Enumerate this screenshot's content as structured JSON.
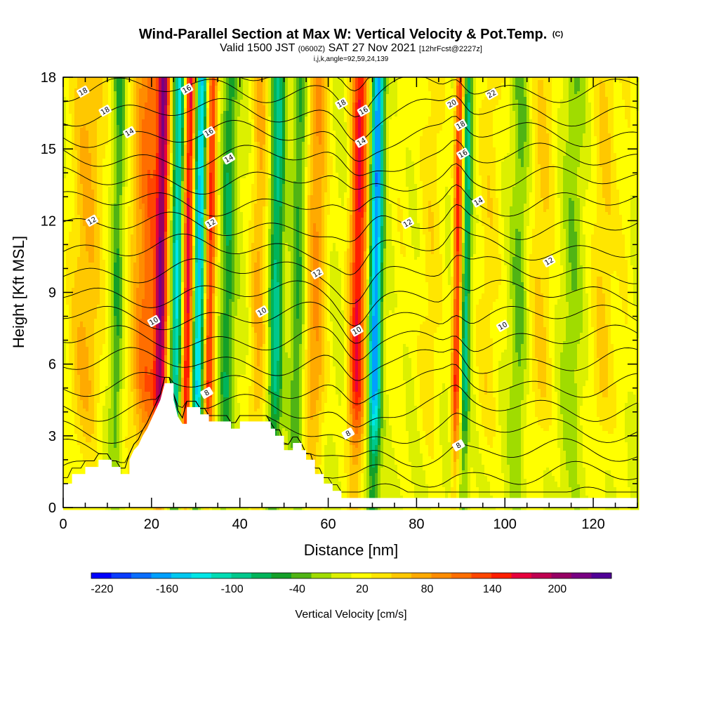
{
  "title": {
    "main": "Wind-Parallel Section at Max W: Vertical Velocity & Pot.Temp.",
    "main_suffix": "(C)",
    "valid_prefix": "Valid 1500 JST",
    "valid_utc": "(0600Z)",
    "valid_date": "SAT 27 Nov 2021",
    "valid_fcst": "[12hrFcst@2227z]",
    "params": "i,j,k,angle=92,59,24,139"
  },
  "chart_data": {
    "type": "heatmap",
    "xlabel": "Distance [nm]",
    "ylabel": "Height [Kft MSL]",
    "xlim": [
      0,
      130
    ],
    "ylim": [
      0,
      18
    ],
    "xticks": [
      0,
      20,
      40,
      60,
      80,
      100,
      120
    ],
    "yticks": [
      0,
      3,
      6,
      9,
      12,
      15,
      18
    ],
    "colorbar": {
      "label": "Vertical Velocity [cm/s]",
      "min": -230,
      "max": 250,
      "step": 20,
      "ticks": [
        -220,
        -160,
        -100,
        -40,
        20,
        80,
        140,
        200
      ],
      "colors": [
        "#0000ff",
        "#0a3cff",
        "#0a6eff",
        "#00a0ff",
        "#00c8f0",
        "#00e6e6",
        "#00dcb4",
        "#00c88c",
        "#00b45a",
        "#14a028",
        "#50b414",
        "#a0dc00",
        "#dcf000",
        "#ffff00",
        "#ffe600",
        "#ffc800",
        "#ffaa00",
        "#ff8c00",
        "#ff6e00",
        "#ff4600",
        "#ff1e00",
        "#e6003c",
        "#be0050",
        "#960064",
        "#780082",
        "#500096"
      ]
    },
    "velocity_bands": [
      {
        "x": 5,
        "w": 4,
        "v": 70
      },
      {
        "x": 12,
        "w": 1.4,
        "v": -60
      },
      {
        "x": 19,
        "w": 4,
        "v": 120
      },
      {
        "x": 22,
        "w": 1.3,
        "v": 160
      },
      {
        "x": 25.5,
        "w": 1.3,
        "v": -140
      },
      {
        "x": 28,
        "w": 1.2,
        "v": 180
      },
      {
        "x": 30.5,
        "w": 1.3,
        "v": -160
      },
      {
        "x": 33,
        "w": 1.2,
        "v": 150
      },
      {
        "x": 37,
        "w": 1.5,
        "v": -70
      },
      {
        "x": 44,
        "w": 2,
        "v": 70
      },
      {
        "x": 48,
        "w": 1.5,
        "v": -100
      },
      {
        "x": 53,
        "w": 1.5,
        "v": -60
      },
      {
        "x": 57,
        "w": 2.5,
        "v": 90
      },
      {
        "x": 66.5,
        "w": 2,
        "v": 170
      },
      {
        "x": 70.5,
        "w": 1.4,
        "v": -190
      },
      {
        "x": 76,
        "w": 2.5,
        "v": 20
      },
      {
        "x": 83,
        "w": 3,
        "v": 40
      },
      {
        "x": 89,
        "w": 1,
        "v": 150
      },
      {
        "x": 91,
        "w": 1,
        "v": -100
      },
      {
        "x": 96,
        "w": 3,
        "v": 40
      },
      {
        "x": 103,
        "w": 1.8,
        "v": -40
      },
      {
        "x": 108,
        "w": 3,
        "v": 50
      },
      {
        "x": 115,
        "w": 2,
        "v": -30
      },
      {
        "x": 122,
        "w": 3,
        "v": 50
      },
      {
        "x": 127,
        "w": 2,
        "v": 20
      }
    ],
    "terrain": [
      [
        0,
        1
      ],
      [
        2,
        1
      ],
      [
        2,
        1.4
      ],
      [
        5,
        1.4
      ],
      [
        5,
        1.7
      ],
      [
        8,
        1.7
      ],
      [
        8,
        2
      ],
      [
        11,
        2
      ],
      [
        11,
        1.7
      ],
      [
        13,
        1.7
      ],
      [
        13,
        1.4
      ],
      [
        15,
        1.4
      ],
      [
        15,
        2
      ],
      [
        16,
        2.4
      ],
      [
        17,
        2.6
      ],
      [
        18,
        3
      ],
      [
        19,
        3.3
      ],
      [
        20,
        3.7
      ],
      [
        21,
        4.1
      ],
      [
        22,
        4.5
      ],
      [
        23,
        5.2
      ],
      [
        25,
        5.2
      ],
      [
        25,
        4.5
      ],
      [
        26,
        3.8
      ],
      [
        27,
        3.5
      ],
      [
        28,
        3.5
      ],
      [
        28,
        4.2
      ],
      [
        31,
        4.2
      ],
      [
        31,
        3.9
      ],
      [
        33,
        3.9
      ],
      [
        33,
        3.6
      ],
      [
        38,
        3.6
      ],
      [
        38,
        3.3
      ],
      [
        40,
        3.3
      ],
      [
        40,
        3.6
      ],
      [
        47,
        3.6
      ],
      [
        47,
        3.3
      ],
      [
        48,
        3.3
      ],
      [
        48,
        3
      ],
      [
        50,
        3
      ],
      [
        50,
        2.4
      ],
      [
        52,
        2.4
      ],
      [
        52,
        2.7
      ],
      [
        54,
        2.7
      ],
      [
        54,
        2.4
      ],
      [
        55,
        2.4
      ],
      [
        55,
        2
      ],
      [
        57,
        2
      ],
      [
        57,
        1.4
      ],
      [
        59,
        1.4
      ],
      [
        59,
        1
      ],
      [
        61,
        1
      ],
      [
        61,
        0.7
      ],
      [
        63,
        0.7
      ],
      [
        63,
        0.4
      ],
      [
        130,
        0.4
      ]
    ],
    "theta_labels": [
      {
        "text": "18",
        "x": 4.5,
        "y": 17.4
      },
      {
        "text": "18",
        "x": 9.5,
        "y": 16.6
      },
      {
        "text": "14",
        "x": 15,
        "y": 15.7
      },
      {
        "text": "16",
        "x": 28,
        "y": 17.5
      },
      {
        "text": "16",
        "x": 33,
        "y": 15.7
      },
      {
        "text": "14",
        "x": 37.5,
        "y": 14.6
      },
      {
        "text": "12",
        "x": 6.5,
        "y": 12
      },
      {
        "text": "12",
        "x": 33.5,
        "y": 11.9
      },
      {
        "text": "10",
        "x": 20.5,
        "y": 7.8
      },
      {
        "text": "8",
        "x": 32.5,
        "y": 4.8
      },
      {
        "text": "10",
        "x": 45,
        "y": 8.2
      },
      {
        "text": "12",
        "x": 57.5,
        "y": 9.8
      },
      {
        "text": "18",
        "x": 63,
        "y": 16.9
      },
      {
        "text": "16",
        "x": 68,
        "y": 16.6
      },
      {
        "text": "14",
        "x": 67.5,
        "y": 15.3
      },
      {
        "text": "10",
        "x": 66.5,
        "y": 7.4
      },
      {
        "text": "8",
        "x": 64.5,
        "y": 3.1
      },
      {
        "text": "12",
        "x": 78,
        "y": 11.9
      },
      {
        "text": "20",
        "x": 88,
        "y": 16.9
      },
      {
        "text": "22",
        "x": 97,
        "y": 17.3
      },
      {
        "text": "18",
        "x": 90,
        "y": 16
      },
      {
        "text": "16",
        "x": 90.5,
        "y": 14.8
      },
      {
        "text": "14",
        "x": 94,
        "y": 12.8
      },
      {
        "text": "8",
        "x": 89.5,
        "y": 2.6
      },
      {
        "text": "10",
        "x": 99.5,
        "y": 7.6
      },
      {
        "text": "12",
        "x": 110,
        "y": 10.3
      }
    ]
  }
}
